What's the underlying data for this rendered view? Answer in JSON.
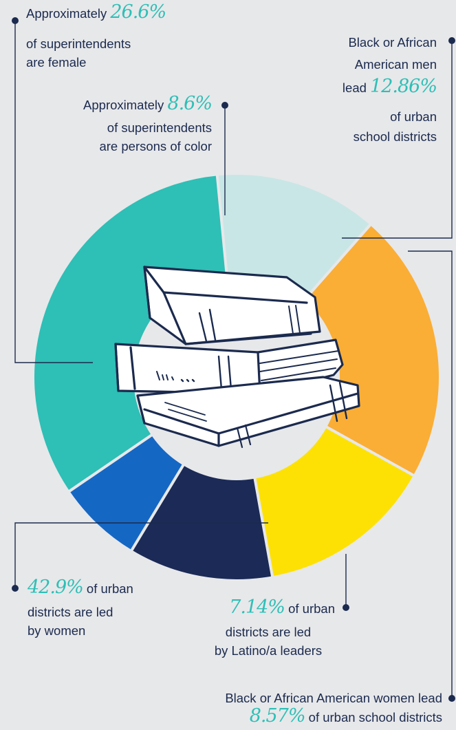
{
  "chart_data": {
    "type": "pie",
    "donut": true,
    "segments": [
      {
        "color": "#c8e6e5",
        "share": 0.13
      },
      {
        "color": "#faae35",
        "share": 0.216
      },
      {
        "color": "#fde105",
        "share": 0.141
      },
      {
        "color": "#1b2a56",
        "share": 0.115
      },
      {
        "color": "#1567c4",
        "share": 0.068
      },
      {
        "color": "#2ebfb6",
        "share": 0.33
      }
    ],
    "annotations": [
      {
        "pre": "Approximately ",
        "value": "26.6%",
        "line1_rest": "",
        "line2": "of superintendents",
        "line3": "are female"
      },
      {
        "pre": "Approximately ",
        "value": "8.6%",
        "line1_rest": "",
        "line2": "of superintendents",
        "line3": "are persons of color"
      },
      {
        "line1": "Black or African",
        "line2": "American men",
        "pre": "lead ",
        "value": "12.86%",
        "line4": "of urban",
        "line5": "school districts"
      },
      {
        "value": "42.9%",
        "rest": " of urban",
        "line2": "districts are led",
        "line3": "by women"
      },
      {
        "value": "7.14%",
        "rest": " of urban",
        "line2": "districts are led",
        "line3": "by Latino/a leaders"
      },
      {
        "line1": "Black or African American women lead",
        "value": "8.57%",
        "rest": " of urban school districts"
      }
    ]
  }
}
